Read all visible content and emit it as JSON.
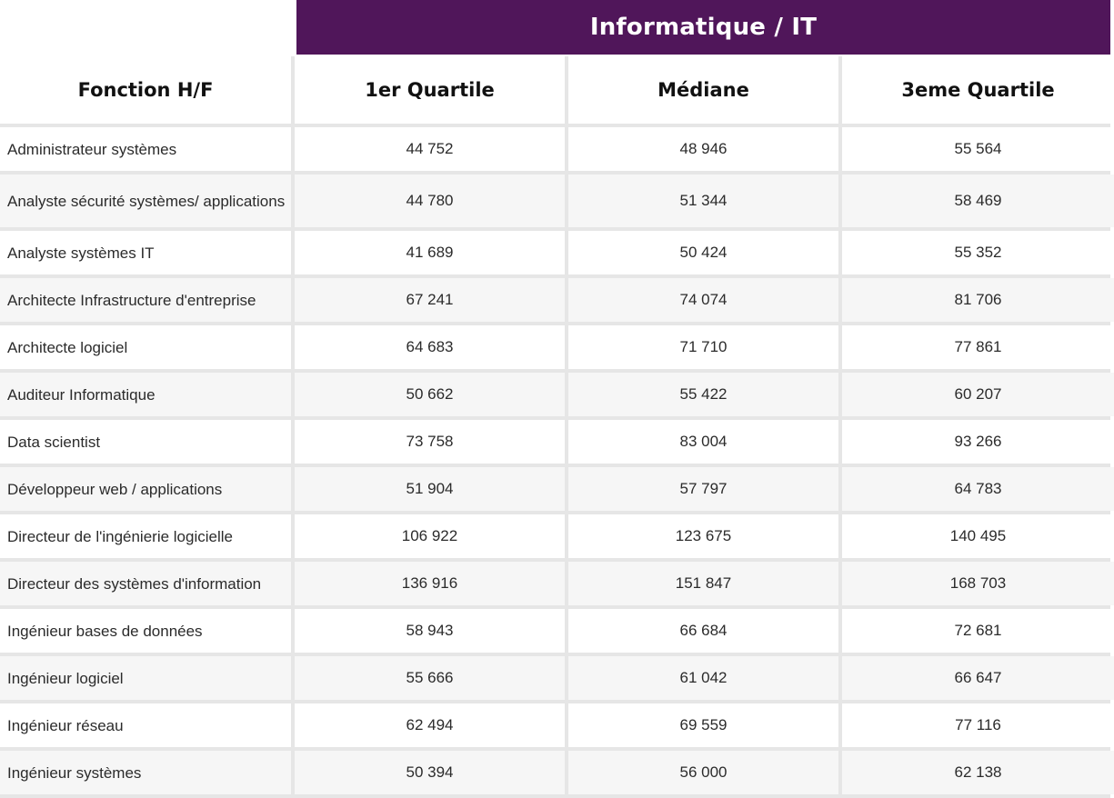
{
  "banner": {
    "title": "Informatique / IT"
  },
  "table": {
    "headers": [
      "Fonction H/F",
      "1er Quartile",
      "Médiane",
      "3eme Quartile"
    ],
    "rows": [
      {
        "fonction": "Administrateur systèmes",
        "q1": "44 752",
        "median": "48 946",
        "q3": "55 564"
      },
      {
        "fonction": "Analyste sécurité systèmes/ applications",
        "q1": "44 780",
        "median": "51 344",
        "q3": "58 469"
      },
      {
        "fonction": "Analyste systèmes IT",
        "q1": "41 689",
        "median": "50 424",
        "q3": "55 352"
      },
      {
        "fonction": "Architecte Infrastructure d'entreprise",
        "q1": "67 241",
        "median": "74 074",
        "q3": "81 706"
      },
      {
        "fonction": "Architecte logiciel",
        "q1": "64 683",
        "median": "71 710",
        "q3": "77 861"
      },
      {
        "fonction": "Auditeur Informatique",
        "q1": "50 662",
        "median": "55 422",
        "q3": "60 207"
      },
      {
        "fonction": "Data scientist",
        "q1": "73 758",
        "median": "83 004",
        "q3": "93 266"
      },
      {
        "fonction": "Développeur web / applications",
        "q1": "51 904",
        "median": "57 797",
        "q3": "64 783"
      },
      {
        "fonction": "Directeur de l'ingénierie logicielle",
        "q1": "106 922",
        "median": "123 675",
        "q3": "140 495"
      },
      {
        "fonction": "Directeur des systèmes d'information",
        "q1": "136 916",
        "median": "151 847",
        "q3": "168 703"
      },
      {
        "fonction": "Ingénieur bases de données",
        "q1": "58 943",
        "median": "66 684",
        "q3": "72 681"
      },
      {
        "fonction": "Ingénieur logiciel",
        "q1": "55 666",
        "median": "61 042",
        "q3": "66 647"
      },
      {
        "fonction": "Ingénieur réseau",
        "q1": "62 494",
        "median": "69 559",
        "q3": "77 116"
      },
      {
        "fonction": "Ingénieur systèmes",
        "q1": "50 394",
        "median": "56 000",
        "q3": "62 138"
      }
    ]
  },
  "colors": {
    "banner": "#50165a",
    "banner_text": "#ffffff",
    "row_light": "#ffffff",
    "row_grey": "#f6f6f6",
    "grid_lines": "#e6e6e6"
  }
}
